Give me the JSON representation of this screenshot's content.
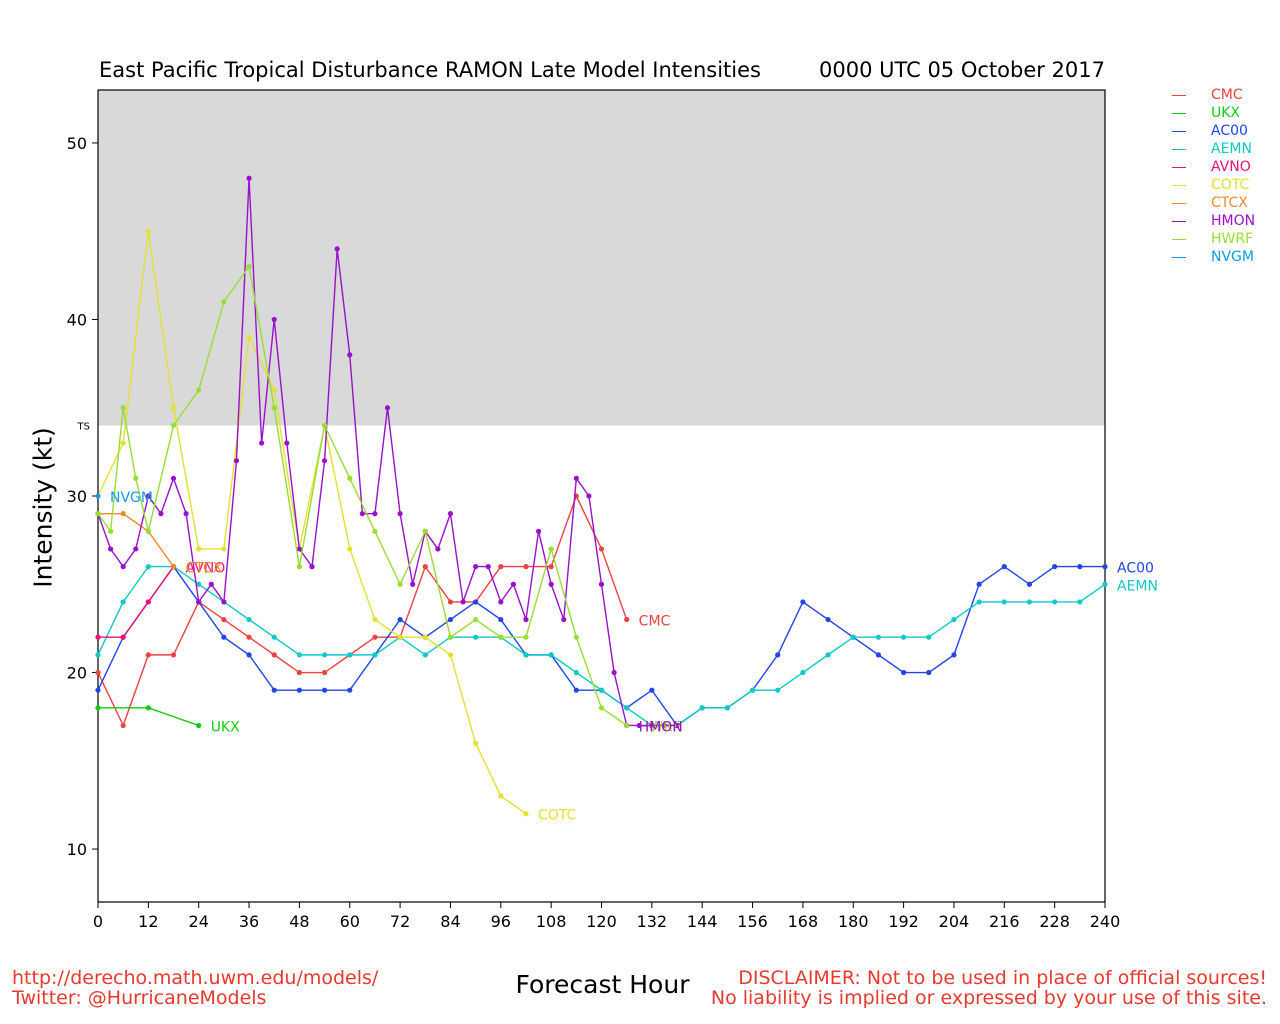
{
  "title_left": "East Pacific Tropical Disturbance RAMON Late Model Intensities",
  "title_right": "0000 UTC 05 October 2017",
  "footer": {
    "url": "http://derecho.math.uwm.edu/models/",
    "twitter": "Twitter: @HurricaneModels",
    "disclaimer1": "DISCLAIMER: Not to be used in place of official sources!",
    "disclaimer2": "No liability is implied or expressed by your use of this site."
  },
  "chart_data": {
    "type": "line",
    "xlabel": "Forecast Hour",
    "ylabel": "Intensity (kt)",
    "xlim": [
      0,
      240
    ],
    "ylim": [
      7,
      53
    ],
    "xticks": [
      0,
      12,
      24,
      36,
      48,
      60,
      72,
      84,
      96,
      108,
      120,
      132,
      144,
      156,
      168,
      180,
      192,
      204,
      216,
      228,
      240
    ],
    "yticks": [
      10,
      20,
      30,
      40,
      50
    ],
    "ts_threshold": 34,
    "ts_label": "TS",
    "shade_above_ts": "#d9d9d9",
    "series": [
      {
        "name": "CMC",
        "color": "#f04040",
        "x": [
          0,
          6,
          12,
          18,
          24,
          30,
          36,
          42,
          48,
          54,
          60,
          66,
          72,
          78,
          84,
          90,
          96,
          102,
          108,
          114,
          120,
          126
        ],
        "y": [
          20,
          17,
          21,
          21,
          24,
          23,
          22,
          21,
          20,
          20,
          21,
          22,
          22,
          26,
          24,
          24,
          26,
          26,
          26,
          30,
          27,
          23
        ]
      },
      {
        "name": "UKX",
        "color": "#11cc11",
        "x": [
          0,
          12,
          24
        ],
        "y": [
          18,
          18,
          17
        ]
      },
      {
        "name": "AC00",
        "color": "#2244ee",
        "x": [
          0,
          6,
          12,
          18,
          24,
          30,
          36,
          42,
          48,
          54,
          60,
          66,
          72,
          78,
          84,
          90,
          96,
          102,
          108,
          114,
          120,
          126,
          132,
          138,
          144,
          150,
          156,
          162,
          168,
          174,
          180,
          186,
          192,
          198,
          204,
          210,
          216,
          222,
          228,
          234,
          240
        ],
        "y": [
          19,
          22,
          24,
          26,
          24,
          22,
          21,
          19,
          19,
          19,
          19,
          21,
          23,
          22,
          23,
          24,
          23,
          21,
          21,
          19,
          19,
          18,
          19,
          17,
          18,
          18,
          19,
          21,
          24,
          23,
          22,
          21,
          20,
          20,
          21,
          25,
          26,
          25,
          26,
          26,
          26
        ]
      },
      {
        "name": "AEMN",
        "color": "#11c8c8",
        "x": [
          0,
          6,
          12,
          18,
          24,
          30,
          36,
          42,
          48,
          54,
          60,
          66,
          72,
          78,
          84,
          90,
          96,
          102,
          108,
          114,
          120,
          126,
          132,
          138,
          144,
          150,
          156,
          162,
          168,
          174,
          180,
          186,
          192,
          198,
          204,
          210,
          216,
          222,
          228,
          234,
          240
        ],
        "y": [
          21,
          24,
          26,
          26,
          25,
          24,
          23,
          22,
          21,
          21,
          21,
          21,
          22,
          21,
          22,
          22,
          22,
          21,
          21,
          20,
          19,
          18,
          17,
          17,
          18,
          18,
          19,
          19,
          20,
          21,
          22,
          22,
          22,
          22,
          23,
          24,
          24,
          24,
          24,
          24,
          25
        ]
      },
      {
        "name": "AVNO",
        "color": "#ee1177",
        "x": [
          0,
          6,
          12,
          18
        ],
        "y": [
          22,
          22,
          24,
          26
        ]
      },
      {
        "name": "COTC",
        "color": "#e5e030",
        "x": [
          0,
          6,
          12,
          18,
          24,
          30,
          36,
          42,
          48,
          54,
          60,
          66,
          72,
          78,
          84,
          90,
          96,
          102
        ],
        "y": [
          30,
          33,
          45,
          35,
          27,
          27,
          39,
          36,
          27,
          34,
          27,
          23,
          22,
          22,
          21,
          16,
          13,
          12
        ]
      },
      {
        "name": "CTCX",
        "color": "#f08a2a",
        "x": [
          0,
          6,
          12,
          18
        ],
        "y": [
          29,
          29,
          28,
          26
        ]
      },
      {
        "name": "HMON",
        "color": "#9a10cc",
        "x": [
          0,
          3,
          6,
          9,
          12,
          15,
          18,
          21,
          24,
          27,
          30,
          33,
          36,
          39,
          42,
          45,
          48,
          51,
          54,
          57,
          60,
          63,
          66,
          69,
          72,
          75,
          78,
          81,
          84,
          87,
          90,
          93,
          96,
          99,
          102,
          105,
          108,
          111,
          114,
          117,
          120,
          123,
          126,
          129,
          132,
          135,
          138
        ],
        "y": [
          29,
          27,
          26,
          27,
          30,
          29,
          31,
          29,
          24,
          25,
          24,
          32,
          48,
          33,
          40,
          33,
          27,
          26,
          32,
          44,
          38,
          29,
          29,
          35,
          29,
          25,
          28,
          27,
          29,
          24,
          26,
          26,
          24,
          25,
          23,
          28,
          25,
          23,
          31,
          30,
          25,
          20,
          17,
          17,
          17,
          17,
          17
        ]
      },
      {
        "name": "HWRF",
        "color": "#99dd33",
        "x": [
          0,
          3,
          6,
          9,
          12,
          18,
          24,
          30,
          36,
          42,
          48,
          54,
          60,
          66,
          72,
          78,
          84,
          90,
          96,
          102,
          108,
          114,
          120,
          126
        ],
        "y": [
          29,
          28,
          35,
          31,
          28,
          34,
          36,
          41,
          43,
          35,
          26,
          34,
          31,
          28,
          25,
          28,
          22,
          23,
          22,
          22,
          27,
          22,
          18,
          17
        ]
      },
      {
        "name": "NVGM",
        "color": "#1199ee",
        "x": [
          0
        ],
        "y": [
          30
        ]
      }
    ],
    "end_labels": [
      {
        "name": "NVGM",
        "x": 0,
        "y": 30
      },
      {
        "name": "UKX",
        "x": 24,
        "y": 17
      },
      {
        "name": "AVNO",
        "x": 18,
        "y": 26
      },
      {
        "name": "CTCX",
        "x": 18,
        "y": 26
      },
      {
        "name": "COTC",
        "x": 102,
        "y": 12
      },
      {
        "name": "CMC",
        "x": 126,
        "y": 23
      },
      {
        "name": "HWRF",
        "x": 126,
        "y": 17
      },
      {
        "name": "HMON",
        "x": 126,
        "y": 17
      },
      {
        "name": "AC00",
        "x": 240,
        "y": 26
      },
      {
        "name": "AEMN",
        "x": 240,
        "y": 25
      }
    ]
  }
}
